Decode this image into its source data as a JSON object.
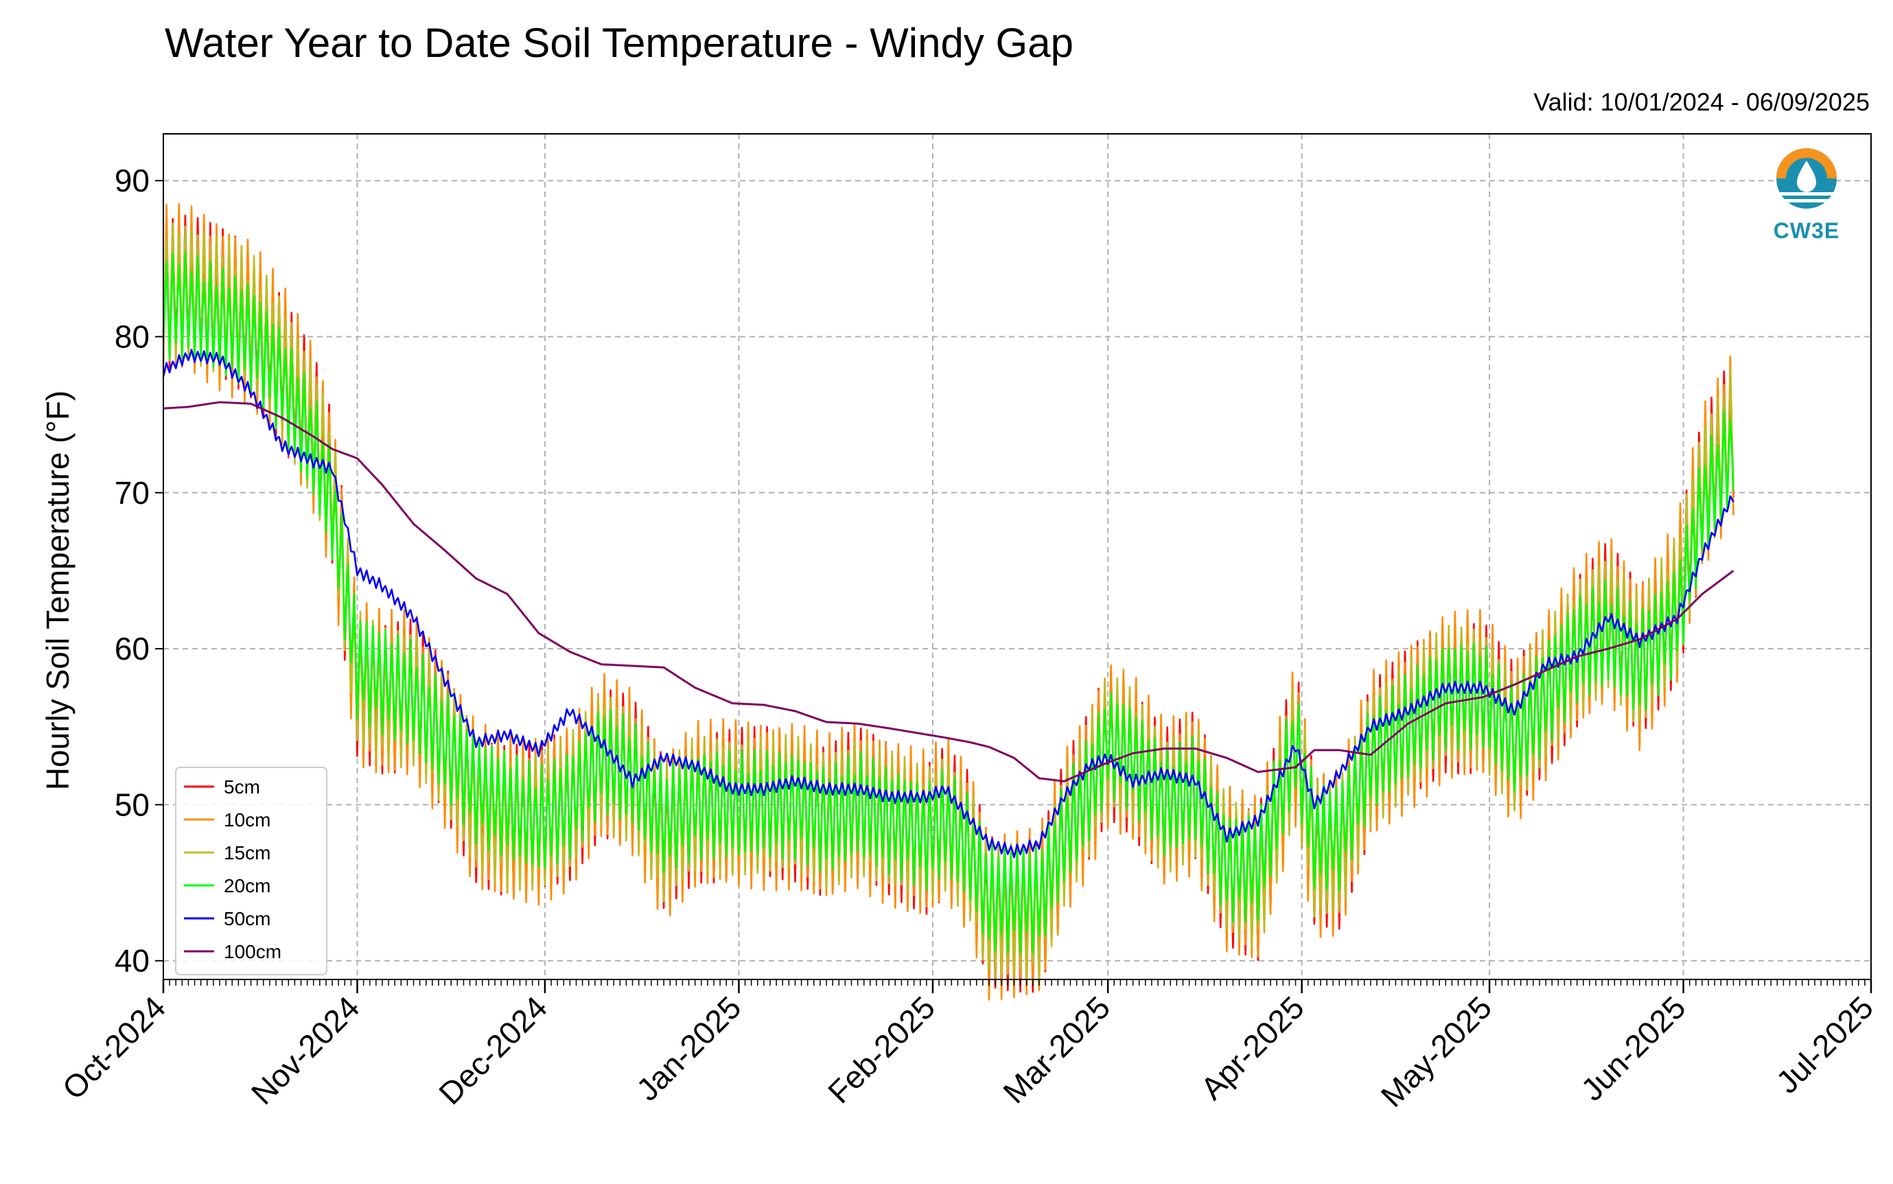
{
  "chart_data": {
    "type": "line",
    "title": "Water Year to Date Soil Temperature - Windy Gap",
    "subtitle": "Valid: 10/01/2024 - 06/09/2025",
    "xlabel": "",
    "ylabel": "Hourly Soil Temperature (°F)",
    "ylim": [
      38.8,
      93.0
    ],
    "xlim": [
      "2024-10-01",
      "2025-07-01"
    ],
    "y_ticks": [
      40,
      50,
      60,
      70,
      80,
      90
    ],
    "x_ticks": [
      "2024-10-01",
      "2024-11-01",
      "2024-12-01",
      "2025-01-01",
      "2025-02-01",
      "2025-03-01",
      "2025-04-01",
      "2025-05-01",
      "2025-06-01",
      "2025-07-01"
    ],
    "x_tick_labels": [
      "Oct-2024",
      "Nov-2024",
      "Dec-2024",
      "Jan-2025",
      "Feb-2025",
      "Mar-2025",
      "Apr-2025",
      "May-2025",
      "Jun-2025",
      "Jul-2025"
    ],
    "grid": true,
    "legend_position": "lower-left",
    "dates": [
      "2024-10-01",
      "2024-10-05",
      "2024-10-10",
      "2024-10-15",
      "2024-10-20",
      "2024-10-25",
      "2024-10-28",
      "2024-11-01",
      "2024-11-05",
      "2024-11-10",
      "2024-11-15",
      "2024-11-20",
      "2024-11-25",
      "2024-11-30",
      "2024-12-05",
      "2024-12-10",
      "2024-12-15",
      "2024-12-20",
      "2024-12-25",
      "2024-12-31",
      "2025-01-05",
      "2025-01-10",
      "2025-01-15",
      "2025-01-20",
      "2025-01-25",
      "2025-01-31",
      "2025-02-03",
      "2025-02-07",
      "2025-02-10",
      "2025-02-14",
      "2025-02-18",
      "2025-02-22",
      "2025-02-26",
      "2025-03-01",
      "2025-03-05",
      "2025-03-10",
      "2025-03-15",
      "2025-03-20",
      "2025-03-25",
      "2025-03-31",
      "2025-04-03",
      "2025-04-07",
      "2025-04-12",
      "2025-04-18",
      "2025-04-24",
      "2025-04-30",
      "2025-05-05",
      "2025-05-10",
      "2025-05-15",
      "2025-05-20",
      "2025-05-25",
      "2025-05-31",
      "2025-06-04",
      "2025-06-09"
    ],
    "series": [
      {
        "name": "5cm",
        "color": "#ff0000",
        "swing": 5,
        "values": [
          83,
          83,
          82,
          81,
          78,
          74,
          70,
          58,
          57,
          57,
          54,
          50,
          49,
          49,
          50,
          53,
          52,
          48,
          50,
          50,
          50,
          50,
          49,
          50,
          49,
          48,
          49,
          47,
          43,
          43,
          43,
          48,
          51,
          54,
          53,
          50,
          51,
          46,
          45,
          54,
          47,
          47,
          53,
          55,
          57,
          57,
          54,
          57,
          60,
          62,
          59,
          63,
          70,
          74
        ]
      },
      {
        "name": "10cm",
        "color": "#ff8c00",
        "swing": 5.5,
        "values": [
          83,
          83,
          82,
          81,
          78,
          74,
          70,
          58,
          57,
          57,
          54,
          50,
          49,
          49,
          50,
          53,
          52,
          48,
          50,
          50,
          50,
          50,
          49,
          50,
          49,
          48,
          49,
          47,
          43,
          43,
          43,
          48,
          51,
          54,
          53,
          50,
          51,
          46,
          45,
          54,
          47,
          47,
          53,
          55,
          57,
          57,
          54,
          57,
          60,
          62,
          59,
          63,
          70,
          74
        ]
      },
      {
        "name": "15cm",
        "color": "#bcbd22",
        "swing": 4.5,
        "values": [
          83,
          83,
          82,
          81,
          78,
          74,
          70,
          58,
          57,
          57,
          54,
          50,
          49,
          49,
          50,
          53,
          52,
          48,
          50,
          50,
          50,
          50,
          49,
          50,
          49,
          48,
          49,
          47,
          43,
          43,
          43,
          48,
          51,
          54,
          53,
          50,
          51,
          46,
          45,
          54,
          47,
          47,
          53,
          55,
          57,
          57,
          54,
          57,
          60,
          62,
          59,
          63,
          70,
          74
        ]
      },
      {
        "name": "20cm",
        "color": "#00ff00",
        "swing": 3.5,
        "values": [
          82,
          82,
          81,
          80,
          77,
          73,
          69,
          59,
          58,
          57,
          54,
          51,
          50,
          49,
          50,
          53,
          52,
          49,
          50,
          50,
          50,
          50,
          49,
          50,
          49,
          48,
          49,
          47,
          44,
          44,
          44,
          48,
          51,
          54,
          53,
          50,
          51,
          46,
          46,
          54,
          48,
          48,
          53,
          55,
          57,
          57,
          54,
          57,
          60,
          61,
          59,
          62,
          69,
          73
        ]
      },
      {
        "name": "50cm",
        "color": "#0000ff",
        "swing": 0.4,
        "values": [
          77.8,
          78.8,
          78.6,
          76.5,
          73,
          72,
          71.5,
          65,
          64,
          62,
          58,
          54,
          54.5,
          53.5,
          56,
          54,
          51.5,
          53,
          52.5,
          51,
          51,
          51.5,
          51,
          51,
          50.5,
          50.5,
          51,
          49,
          47.5,
          47,
          47.5,
          50.5,
          52.5,
          53,
          51.5,
          52,
          51.5,
          48,
          49,
          53.8,
          50,
          52,
          55,
          56,
          57.5,
          57.5,
          56,
          59,
          59.5,
          62,
          60.5,
          62,
          66,
          69.8
        ]
      },
      {
        "name": "100cm",
        "color": "#800060",
        "swing": 0,
        "values": [
          75.4,
          75.5,
          75.8,
          75.7,
          74.8,
          73.6,
          72.8,
          72.2,
          70.5,
          68,
          66.3,
          64.5,
          63.5,
          61,
          59.8,
          59,
          58.9,
          58.8,
          57.5,
          56.5,
          56.4,
          56,
          55.3,
          55.2,
          54.9,
          54.5,
          54.3,
          54,
          53.7,
          53,
          51.7,
          51.5,
          52.2,
          52.7,
          53.3,
          53.6,
          53.6,
          53,
          52.1,
          52.4,
          53.5,
          53.5,
          53.2,
          55.2,
          56.5,
          56.9,
          57.7,
          58.6,
          59.5,
          60,
          60.6,
          61.9,
          63.5,
          65
        ]
      }
    ]
  },
  "logo": {
    "text": "CW3E",
    "orange": "#f5931f",
    "blue": "#1a8fb0"
  }
}
